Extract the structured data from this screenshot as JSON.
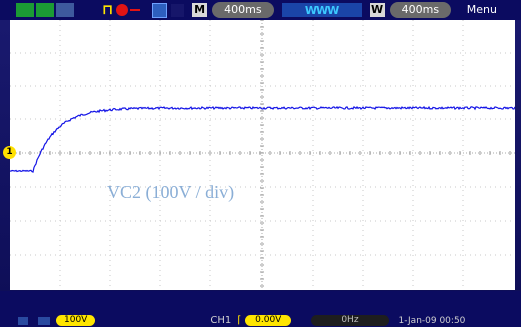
{
  "toolbar": {
    "main_label": "M",
    "main_timebase": "400ms",
    "window_label": "W",
    "window_timebase": "400ms",
    "zoom_wave": "WWW",
    "menu": "Menu"
  },
  "graticule": {
    "annotation": "VC2 (100V / div)",
    "ch1_marker": "1"
  },
  "status": {
    "ch1_scale": "100V",
    "trigger_source": "CH1",
    "trigger_level": "0.00V",
    "freq": "0Hz",
    "timestamp": "1-Jan-09 00:50"
  },
  "colors": {
    "trace": "#1414e6",
    "grid": "#b8b8b8",
    "background": "#ffffff",
    "annotation": "#8aaed6"
  }
}
